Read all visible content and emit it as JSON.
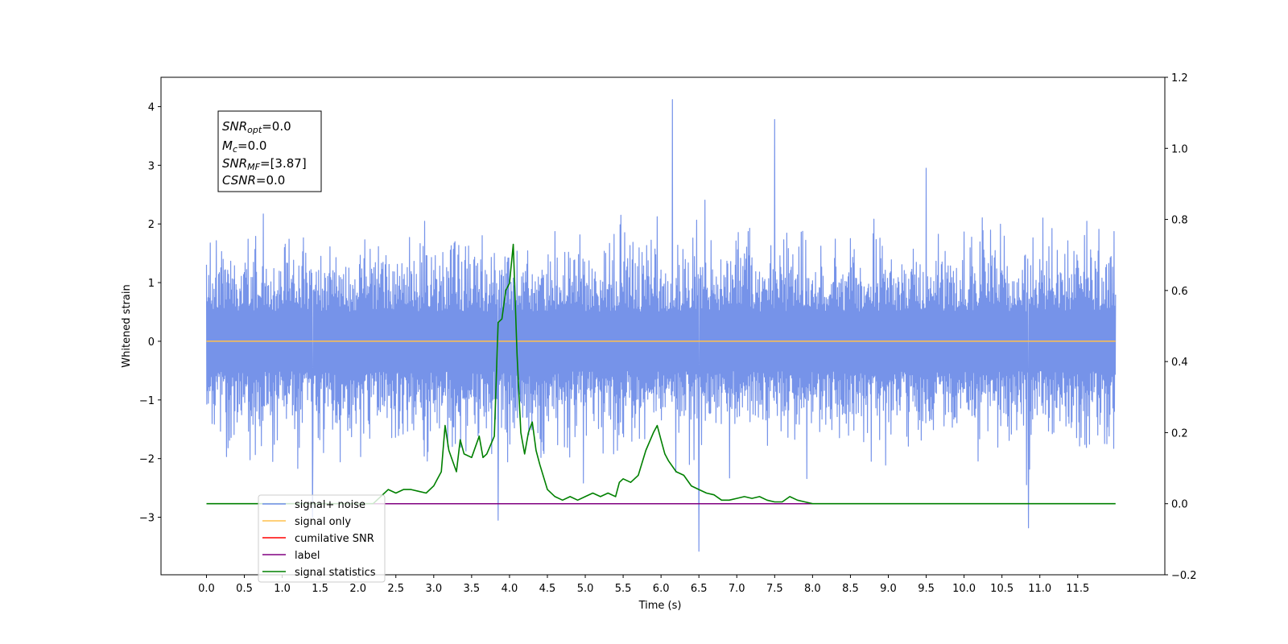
{
  "chart_data": {
    "type": "line",
    "xlabel": "Time (s)",
    "ylabel": "Whitened strain",
    "xlim": [
      -0.6,
      12.65
    ],
    "ylim": [
      -3.98,
      4.5
    ],
    "y2lim": [
      -0.2,
      1.2
    ],
    "xticks": [
      "0.0",
      "0.5",
      "1.0",
      "1.5",
      "2.0",
      "2.5",
      "3.0",
      "3.5",
      "4.0",
      "4.5",
      "5.0",
      "5.5",
      "6.0",
      "6.5",
      "7.0",
      "7.5",
      "8.0",
      "8.5",
      "9.0",
      "9.5",
      "10.0",
      "10.5",
      "11.0",
      "11.5"
    ],
    "yticks": [
      "4",
      "3",
      "2",
      "1",
      "0",
      "−1",
      "−2",
      "−3"
    ],
    "y2ticks": [
      "1.2",
      "1.0",
      "0.8",
      "0.6",
      "0.4",
      "0.2",
      "0.0",
      "−0.2"
    ],
    "legend_position": "lower left",
    "annotation": {
      "lines": [
        {
          "base": "SNR",
          "sub": "opt",
          "value": "=0.0"
        },
        {
          "base": "M",
          "sub": "c",
          "value": "=0.0"
        },
        {
          "base": "SNR",
          "sub": "MF",
          "value": "=[3.87]"
        },
        {
          "base": "CSNR",
          "sub": "",
          "value": "=0.0"
        }
      ]
    },
    "series": [
      {
        "name": "signal+ noise",
        "color": "#6f8de8",
        "axis": "left",
        "style": "noise",
        "x_range": [
          0.0,
          12.0
        ],
        "typical_amplitude": [
          -1.9,
          2.1
        ],
        "max": 4.12,
        "min": -3.58
      },
      {
        "name": "signal only",
        "color": "#ffc04d",
        "axis": "left",
        "x": [
          0.0,
          12.0
        ],
        "y": [
          0.0,
          0.0
        ]
      },
      {
        "name": "cumilative SNR",
        "color": "#ff0000",
        "axis": "right",
        "x": [],
        "y": []
      },
      {
        "name": "label",
        "color": "#800080",
        "axis": "right",
        "x": [
          0.0,
          8.0
        ],
        "y": [
          0.0,
          0.0
        ]
      },
      {
        "name": "signal statistics",
        "color": "#008000",
        "axis": "right",
        "x": [
          0.0,
          2.2,
          2.3,
          2.4,
          2.5,
          2.6,
          2.7,
          2.8,
          2.9,
          3.0,
          3.05,
          3.1,
          3.15,
          3.2,
          3.3,
          3.35,
          3.4,
          3.5,
          3.6,
          3.65,
          3.7,
          3.8,
          3.85,
          3.9,
          3.95,
          4.0,
          4.05,
          4.1,
          4.15,
          4.2,
          4.25,
          4.3,
          4.35,
          4.4,
          4.5,
          4.6,
          4.7,
          4.8,
          4.9,
          5.0,
          5.1,
          5.2,
          5.3,
          5.4,
          5.45,
          5.5,
          5.6,
          5.7,
          5.8,
          5.9,
          5.95,
          6.0,
          6.05,
          6.1,
          6.2,
          6.3,
          6.4,
          6.5,
          6.6,
          6.7,
          6.8,
          6.9,
          7.0,
          7.1,
          7.2,
          7.3,
          7.4,
          7.5,
          7.6,
          7.7,
          7.8,
          7.9,
          8.0,
          8.1,
          8.2,
          8.5,
          12.0
        ],
        "y": [
          0.0,
          0.0,
          0.02,
          0.04,
          0.03,
          0.04,
          0.04,
          0.035,
          0.03,
          0.05,
          0.07,
          0.09,
          0.22,
          0.15,
          0.09,
          0.18,
          0.14,
          0.13,
          0.19,
          0.13,
          0.14,
          0.19,
          0.51,
          0.52,
          0.6,
          0.62,
          0.73,
          0.42,
          0.2,
          0.14,
          0.2,
          0.23,
          0.15,
          0.11,
          0.04,
          0.02,
          0.01,
          0.02,
          0.01,
          0.02,
          0.03,
          0.02,
          0.03,
          0.02,
          0.06,
          0.07,
          0.06,
          0.08,
          0.15,
          0.2,
          0.22,
          0.18,
          0.14,
          0.12,
          0.09,
          0.08,
          0.05,
          0.04,
          0.03,
          0.025,
          0.01,
          0.01,
          0.015,
          0.02,
          0.015,
          0.02,
          0.01,
          0.005,
          0.005,
          0.02,
          0.01,
          0.005,
          0.0,
          0.0,
          0.0,
          0.0,
          0.0
        ]
      }
    ]
  }
}
